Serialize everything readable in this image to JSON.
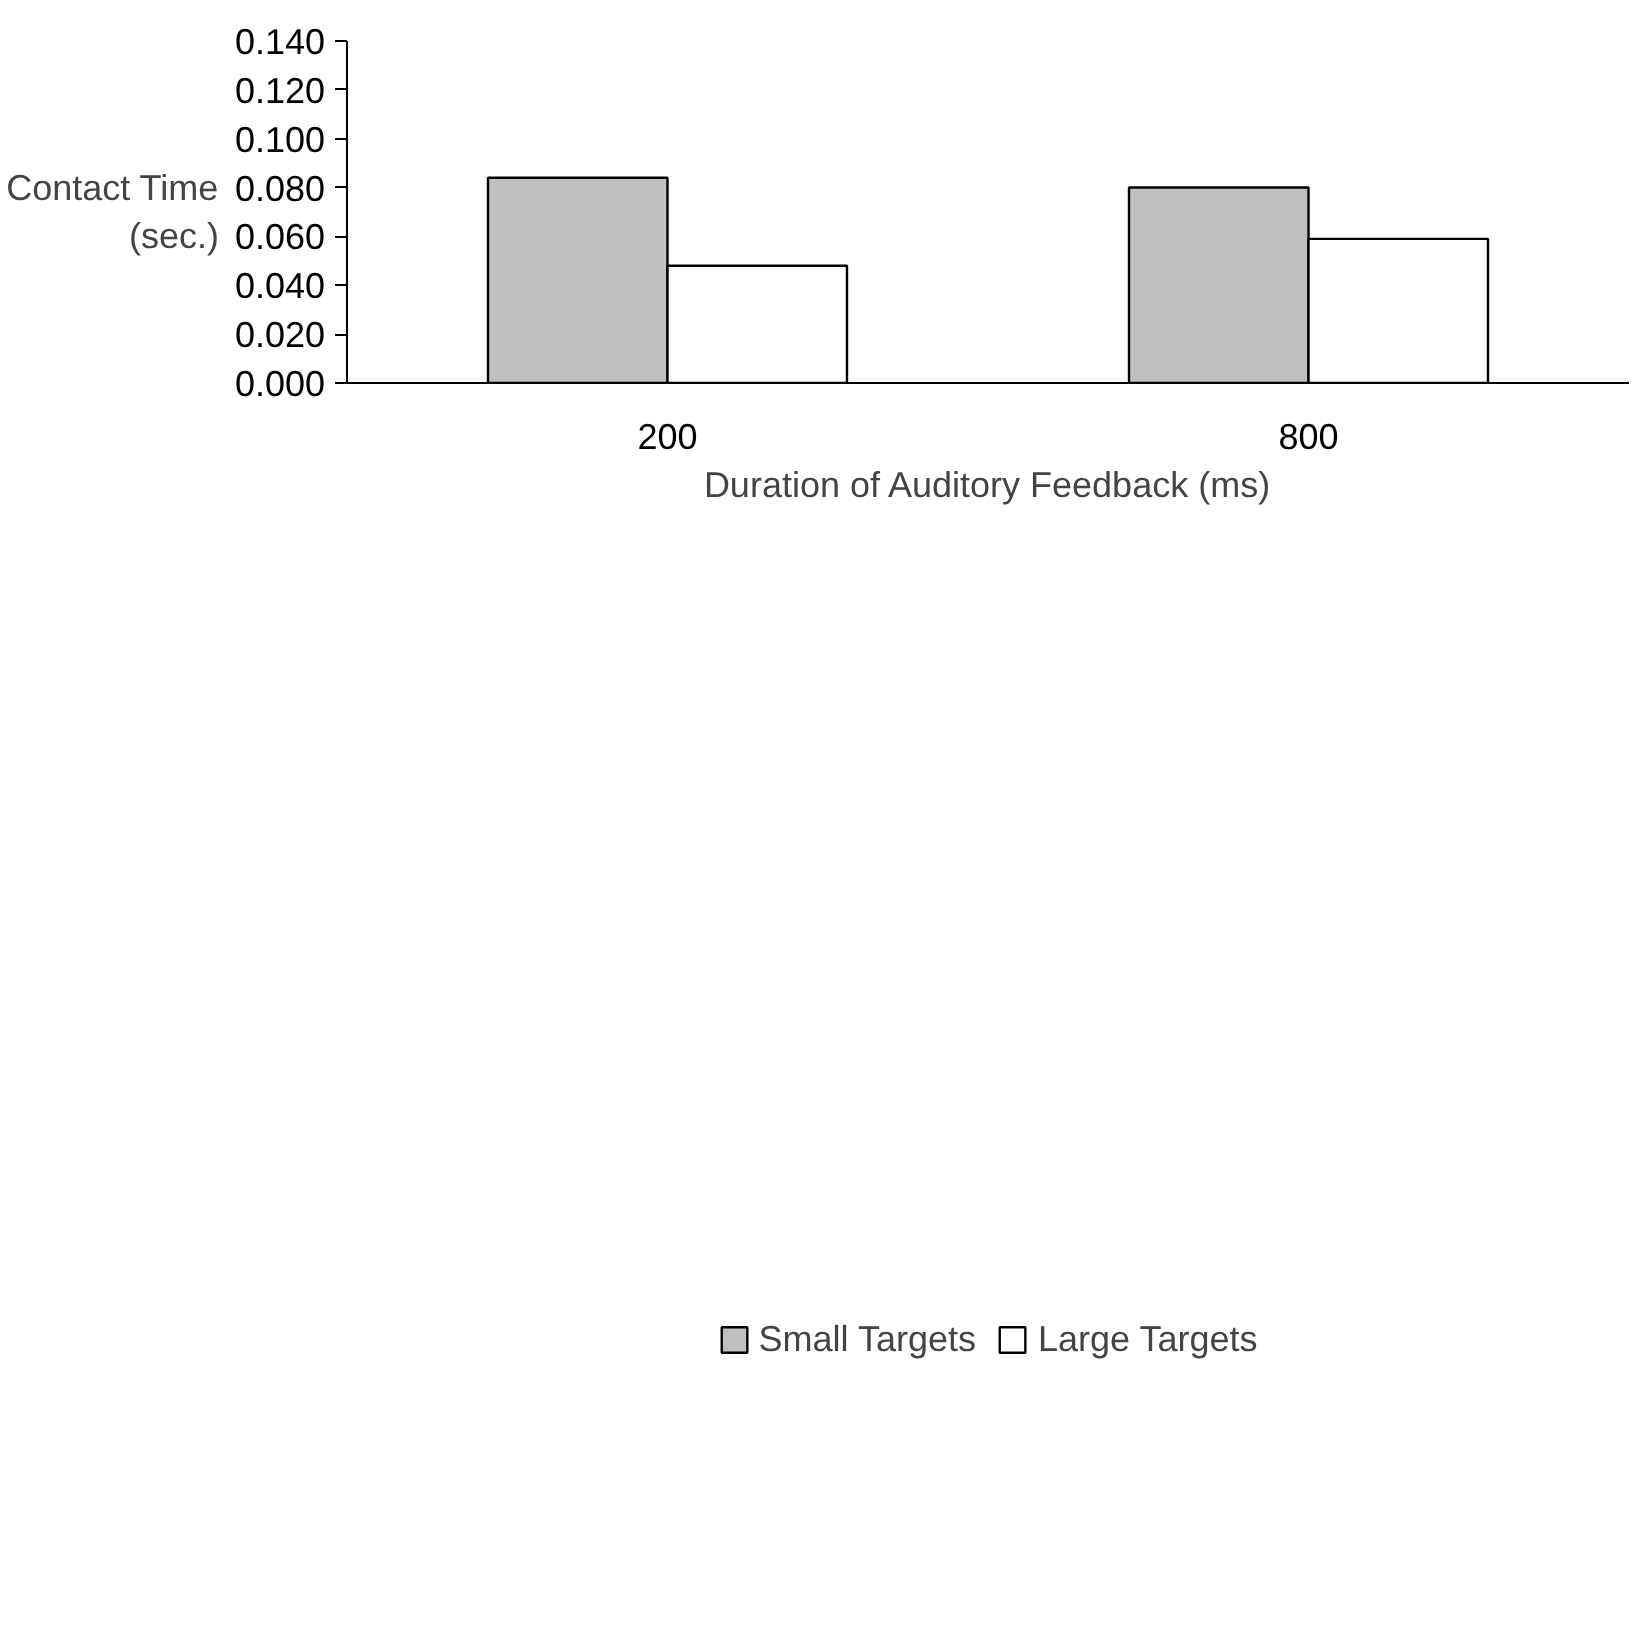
{
  "chart_data": {
    "type": "bar",
    "xlabel": "Duration of Auditory Feedback (ms)",
    "ylabel": "Contact Time\n(sec.)",
    "categories": [
      "200",
      "800"
    ],
    "series": [
      {
        "name": "Small Targets",
        "color": "#c0c0c0",
        "values": [
          0.084,
          0.08
        ]
      },
      {
        "name": "Large Targets",
        "color": "#ffffff",
        "values": [
          0.048,
          0.059
        ]
      }
    ],
    "ylim": [
      0,
      0.14
    ],
    "yticks": [
      {
        "value": 0,
        "label": "0.000"
      },
      {
        "value": 0.02,
        "label": "0.020"
      },
      {
        "value": 0.04,
        "label": "0.040"
      },
      {
        "value": 0.06,
        "label": "0.060"
      },
      {
        "value": 0.08,
        "label": "0.080"
      },
      {
        "value": 0.1,
        "label": "0.100"
      },
      {
        "value": 0.12,
        "label": "0.120"
      },
      {
        "value": 0.14,
        "label": "0.140"
      }
    ],
    "grid": false,
    "legend": "bottom"
  }
}
